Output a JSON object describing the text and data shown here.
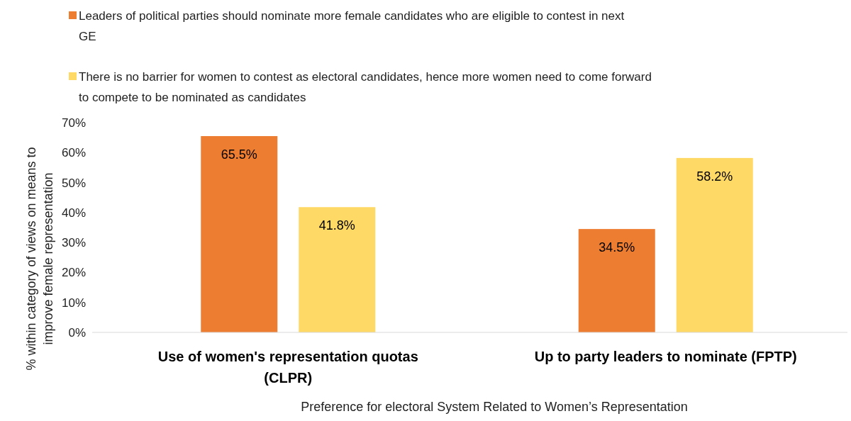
{
  "chart_data": {
    "type": "bar",
    "xlabel": "Preference for electoral System Related to Women’s Representation",
    "ylabel": "% within category of views on means to improve female representation",
    "categories": [
      "Use of women's representation quotas (CLPR)",
      "Up to party leaders to nominate (FPTP)"
    ],
    "series": [
      {
        "name": "Leaders of political parties should nominate more female candidates who are eligible to contest in next GE",
        "color": "#ed7d31",
        "values": [
          65.5,
          34.5
        ]
      },
      {
        "name": "There is no barrier for women to contest as electoral candidates, hence more women need to come forward to compete to be nominated as candidates",
        "color": "#ffd966",
        "values": [
          41.8,
          58.2
        ]
      }
    ],
    "ylim": [
      0,
      70
    ],
    "yticks": [
      {
        "value": 0,
        "label": "0%"
      },
      {
        "value": 10,
        "label": "10%"
      },
      {
        "value": 20,
        "label": "20%"
      },
      {
        "value": 30,
        "label": "30%"
      },
      {
        "value": 40,
        "label": "40%"
      },
      {
        "value": 50,
        "label": "50%"
      },
      {
        "value": 60,
        "label": "60%"
      },
      {
        "value": 70,
        "label": "70%"
      }
    ],
    "value_labels": [
      [
        "65.5%",
        "34.5%"
      ],
      [
        "41.8%",
        "58.2%"
      ]
    ],
    "grid": false,
    "legend": "top"
  }
}
